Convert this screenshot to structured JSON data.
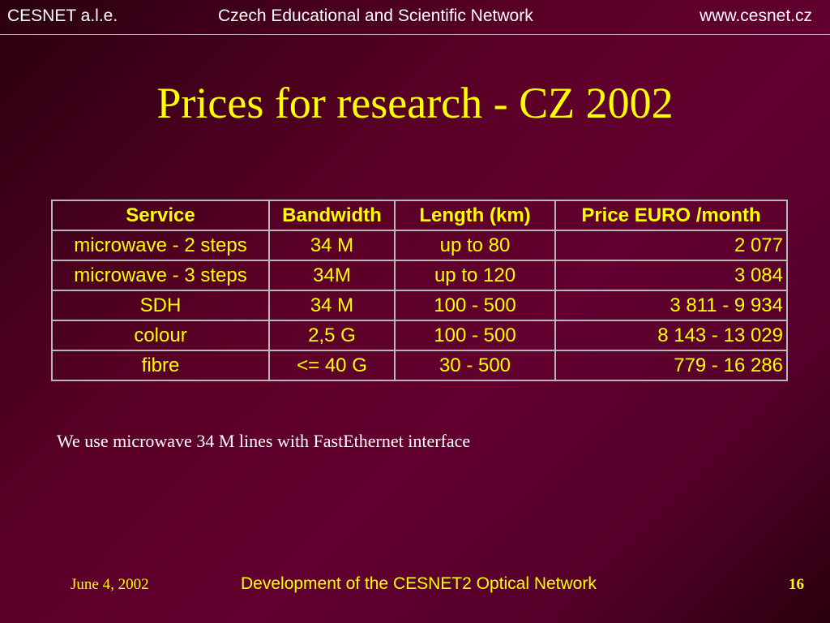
{
  "header": {
    "left": "CESNET a.l.e.",
    "center": "Czech Educational and Scientific Network",
    "right": "www.cesnet.cz"
  },
  "slide": {
    "title": "Prices for research - CZ 2002",
    "note": "We use microwave 34 M lines with FastEthernet interface"
  },
  "table": {
    "columns": [
      "Service",
      "Bandwidth",
      "Length  (km)",
      "Price EURO /month"
    ],
    "rows": [
      [
        "microwave - 2 steps",
        "34 M",
        "up to 80",
        "2 077"
      ],
      [
        "microwave - 3 steps",
        "34M",
        "up to 120",
        "3 084"
      ],
      [
        "SDH",
        "34 M",
        "100 - 500",
        "3 811 - 9 934"
      ],
      [
        "colour",
        "2,5 G",
        "100 - 500",
        "8 143 - 13 029"
      ],
      [
        "fibre",
        "<= 40 G",
        "30 - 500",
        "779 - 16 286"
      ]
    ]
  },
  "footer": {
    "date": "June 4, 2002",
    "presentation": "Development of the CESNET2 Optical Network",
    "page": "16"
  },
  "colors": {
    "background": "#5a0026",
    "title_text": "#ffff00",
    "table_text": "#ffff00",
    "table_border": "#b8b8b8",
    "header_text": "#ffffff"
  }
}
